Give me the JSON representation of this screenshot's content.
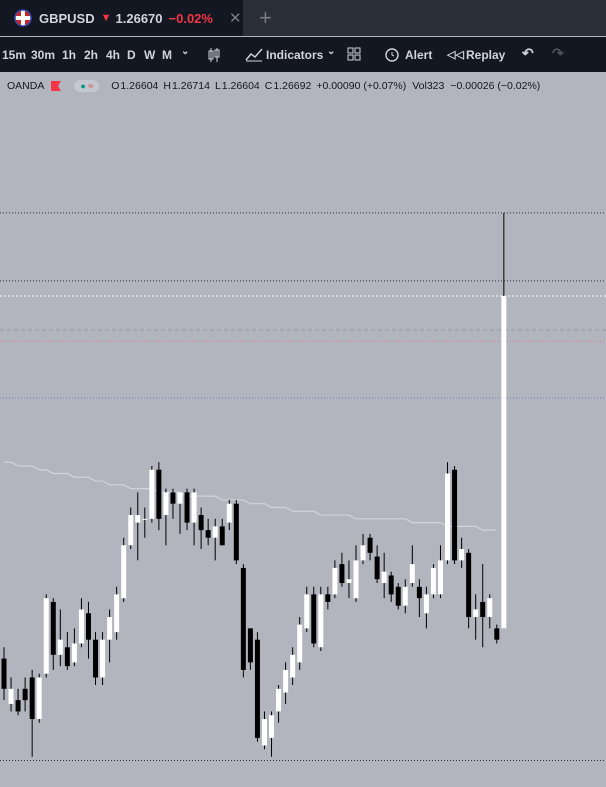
{
  "tab": {
    "symbol": "GBPUSD",
    "arrow": "▼",
    "price": "1.26670",
    "change": "−0.02%"
  },
  "toolbar": {
    "intervals": [
      "15m",
      "30m",
      "1h",
      "2h",
      "4h",
      "D",
      "W",
      "M"
    ],
    "indicators": "Indicators",
    "alert": "Alert",
    "replay": "Replay"
  },
  "legend": {
    "source": "OANDA",
    "items": [
      {
        "key": "O",
        "value": "1.26604"
      },
      {
        "key": "H",
        "value": "1.26714"
      },
      {
        "key": "L",
        "value": "1.26604"
      },
      {
        "key": "C",
        "value": "1.26692"
      }
    ],
    "change": "+0.00090 (+0.07%)",
    "vol_key": "Vol",
    "vol": "323",
    "extra": "−0.00026 (−0.02%)"
  },
  "chart_data": {
    "type": "candlestick",
    "ylim": [
      1.26562,
      1.26746
    ],
    "up_color": "#ffffff",
    "down_color": "#000000",
    "ma_color": "#d1d4dc",
    "open": [
      1.26596,
      1.26584,
      1.26585,
      1.26588,
      1.26591,
      1.2658,
      1.26592,
      1.26611,
      1.26597,
      1.26599,
      1.26595,
      1.266,
      1.26608,
      1.26601,
      1.26591,
      1.26601,
      1.26603,
      1.26612,
      1.26626,
      1.26632,
      1.26633,
      1.26633,
      1.26646,
      1.26634,
      1.2664,
      1.26637,
      1.2664,
      1.26632,
      1.26634,
      1.2663,
      1.26628,
      1.26631,
      1.26632,
      1.26637,
      1.2662,
      1.26604,
      1.26601,
      1.26573,
      1.26575,
      1.26582,
      1.26587,
      1.26591,
      1.26595,
      1.26604,
      1.26613,
      1.26599,
      1.26613,
      1.26613,
      1.26621,
      1.26616,
      1.26612,
      1.26622,
      1.26628,
      1.26623,
      1.26616,
      1.26618,
      1.26615,
      1.2661,
      1.26616,
      1.26615,
      1.26608,
      1.26613,
      1.26613,
      1.26622,
      1.26646,
      1.26622,
      1.26624,
      1.26607,
      1.26611,
      1.26607,
      1.26604,
      1.26604
    ],
    "high": [
      1.26599,
      1.26591,
      1.26588,
      1.26591,
      1.26593,
      1.26592,
      1.26613,
      1.26612,
      1.26609,
      1.26603,
      1.26604,
      1.26612,
      1.26611,
      1.26603,
      1.26603,
      1.26609,
      1.26615,
      1.26628,
      1.26636,
      1.2664,
      1.26636,
      1.26647,
      1.26648,
      1.26641,
      1.26641,
      1.2664,
      1.26641,
      1.26641,
      1.26636,
      1.26633,
      1.26633,
      1.26633,
      1.26638,
      1.26638,
      1.26621,
      1.26604,
      1.26603,
      1.26582,
      1.26582,
      1.26589,
      1.26595,
      1.26599,
      1.26607,
      1.26615,
      1.26615,
      1.26615,
      1.26615,
      1.26622,
      1.26624,
      1.26622,
      1.26626,
      1.26629,
      1.26629,
      1.26626,
      1.26624,
      1.26619,
      1.26616,
      1.26617,
      1.26626,
      1.26617,
      1.26615,
      1.26621,
      1.26626,
      1.26648,
      1.26647,
      1.26628,
      1.26625,
      1.26613,
      1.26621,
      1.26613,
      1.26605,
      1.26714
    ],
    "low": [
      1.26585,
      1.26582,
      1.26581,
      1.26582,
      1.2657,
      1.26579,
      1.26591,
      1.26593,
      1.26594,
      1.26593,
      1.26594,
      1.26599,
      1.26596,
      1.26589,
      1.26589,
      1.26595,
      1.26601,
      1.26611,
      1.26625,
      1.26622,
      1.26628,
      1.26632,
      1.2663,
      1.26626,
      1.26633,
      1.26629,
      1.2663,
      1.26626,
      1.26625,
      1.26626,
      1.26622,
      1.26626,
      1.2663,
      1.26621,
      1.26591,
      1.26593,
      1.26574,
      1.26572,
      1.2657,
      1.26579,
      1.26584,
      1.26589,
      1.26593,
      1.26603,
      1.26599,
      1.26598,
      1.26609,
      1.26612,
      1.26615,
      1.26612,
      1.26611,
      1.26621,
      1.26622,
      1.26616,
      1.26612,
      1.26611,
      1.26609,
      1.26608,
      1.26615,
      1.26607,
      1.26604,
      1.26612,
      1.26612,
      1.26621,
      1.26621,
      1.2662,
      1.26604,
      1.26601,
      1.26599,
      1.26604,
      1.266,
      1.26604
    ],
    "close": [
      1.26588,
      1.26588,
      1.26582,
      1.26585,
      1.2658,
      1.26591,
      1.26612,
      1.26597,
      1.26601,
      1.26594,
      1.266,
      1.26609,
      1.26601,
      1.26591,
      1.26601,
      1.26607,
      1.26613,
      1.26626,
      1.26634,
      1.26634,
      1.26633,
      1.26646,
      1.26633,
      1.2664,
      1.26637,
      1.2664,
      1.26632,
      1.2664,
      1.2663,
      1.26628,
      1.26631,
      1.26626,
      1.26637,
      1.26622,
      1.26593,
      1.26595,
      1.26575,
      1.2658,
      1.26581,
      1.26588,
      1.26593,
      1.26597,
      1.26605,
      1.26613,
      1.266,
      1.26613,
      1.26611,
      1.2662,
      1.26616,
      1.26617,
      1.26622,
      1.26626,
      1.26624,
      1.26617,
      1.26619,
      1.26613,
      1.2661,
      1.26615,
      1.26621,
      1.26612,
      1.26613,
      1.2662,
      1.26622,
      1.26645,
      1.26622,
      1.26625,
      1.26607,
      1.26609,
      1.26607,
      1.26612,
      1.26601,
      1.26692
    ],
    "ma_values": [
      1.26648,
      1.26648,
      1.26647,
      1.26647,
      1.26647,
      1.26646,
      1.26646,
      1.26645,
      1.26645,
      1.26645,
      1.26644,
      1.26644,
      1.26644,
      1.26643,
      1.26643,
      1.26642,
      1.26642,
      1.26642,
      1.26641,
      1.26641,
      1.26641,
      1.26641,
      1.2664,
      1.2664,
      1.2664,
      1.2664,
      1.26639,
      1.26639,
      1.26639,
      1.26639,
      1.26639,
      1.26638,
      1.26638,
      1.26638,
      1.26638,
      1.26637,
      1.26637,
      1.26637,
      1.26636,
      1.26636,
      1.26636,
      1.26635,
      1.26635,
      1.26635,
      1.26635,
      1.26634,
      1.26634,
      1.26634,
      1.26634,
      1.26634,
      1.26633,
      1.26633,
      1.26633,
      1.26633,
      1.26633,
      1.26633,
      1.26633,
      1.26633,
      1.26632,
      1.26632,
      1.26632,
      1.26632,
      1.26632,
      1.26631,
      1.26631,
      1.26631,
      1.26631,
      1.26631,
      1.2663,
      1.2663,
      1.2663,
      null
    ],
    "levels": [
      {
        "value": 1.26714,
        "color": "#2a2e39",
        "dash": "1 2"
      },
      {
        "value": 1.26696,
        "color": "#2a2e39",
        "dash": "1 2"
      },
      {
        "value": 1.26692,
        "color": "#ffffff",
        "dash": "2 2"
      },
      {
        "value": 1.26683,
        "color": "#9598a1",
        "dash": "4 3"
      },
      {
        "value": 1.2668,
        "color": "#e57373",
        "dash": "1 2"
      },
      {
        "value": 1.26665,
        "color": "#5b7fd6",
        "dash": "1 2"
      },
      {
        "value": 1.26569,
        "color": "#2a2e39",
        "dash": "1 2"
      }
    ]
  }
}
